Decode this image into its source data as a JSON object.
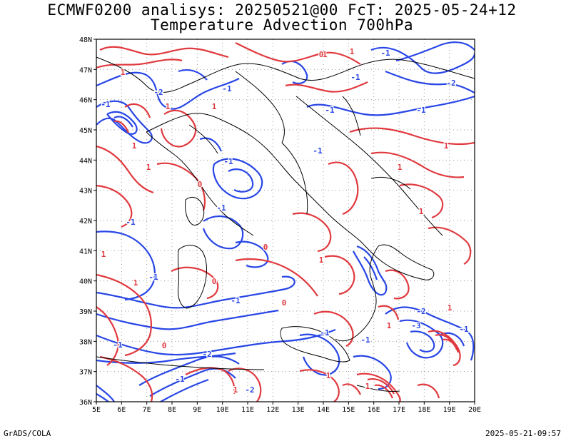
{
  "title": {
    "line1": "ECMWF0200 analisys: 20250521@00 FcT: 2025-05-24+12",
    "line2": "Temperature Advection 700hPa"
  },
  "axes": {
    "lon_labels": [
      "5E",
      "6E",
      "7E",
      "8E",
      "9E",
      "10E",
      "11E",
      "12E",
      "13E",
      "14E",
      "15E",
      "16E",
      "17E",
      "18E",
      "19E",
      "20E"
    ],
    "lat_labels": [
      "36N",
      "37N",
      "38N",
      "39N",
      "40N",
      "41N",
      "42N",
      "43N",
      "44N",
      "45N",
      "46N",
      "47N",
      "48N"
    ],
    "lon_range": [
      5,
      20
    ],
    "lat_range": [
      36,
      48
    ],
    "grid": "dotted"
  },
  "contour_colors": {
    "positive": "#e0393e",
    "negative": "#2846e6",
    "coast": "#000000"
  },
  "contour_labels": {
    "positive": "1",
    "negative": "-1",
    "neg2": "-2",
    "neg3": "-3",
    "zero": "0"
  },
  "footer": {
    "left": "GrADS/COLA",
    "right": "2025-05-21-09:57"
  }
}
